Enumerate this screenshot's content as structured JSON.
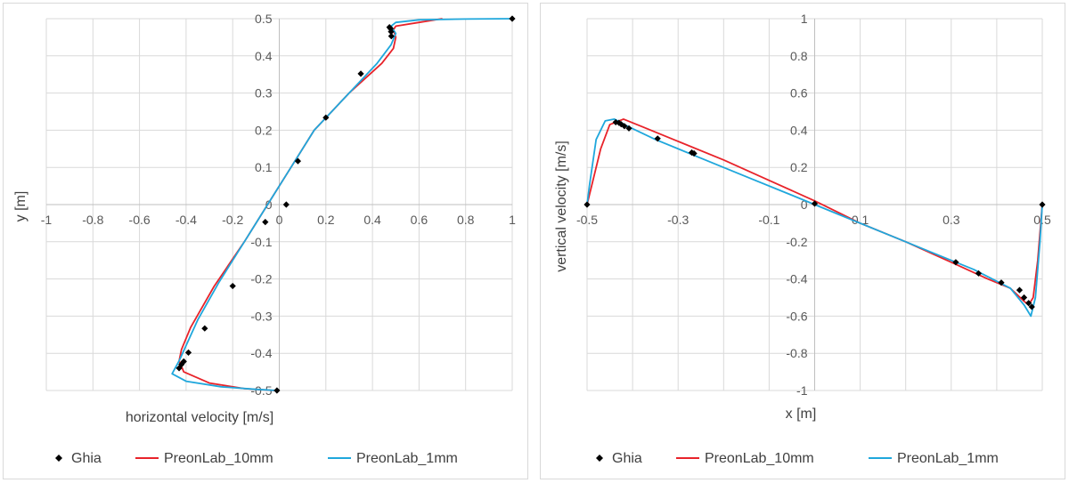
{
  "colors": {
    "ghia": "#000000",
    "preon10": "#e8232a",
    "preon1": "#1fa7dc",
    "grid": "#d9d9d9"
  },
  "chart_data": [
    {
      "type": "scatter",
      "xlabel": "horizontal velocity [m/s]",
      "ylabel": "y [m]",
      "xlim": [
        -1,
        1
      ],
      "ylim": [
        -0.5,
        0.5
      ],
      "x_ticks": [
        "-1",
        "-0.8",
        "-0.6",
        "-0.4",
        "-0.2",
        "0",
        "0.2",
        "0.4",
        "0.6",
        "0.8",
        "1"
      ],
      "y_ticks": [
        "-0.5",
        "-0.4",
        "-0.3",
        "-0.2",
        "-0.1",
        "0",
        "0.1",
        "0.2",
        "0.3",
        "0.4",
        "0.5"
      ],
      "grid": true,
      "legend_position": "bottom",
      "series": [
        {
          "name": "Ghia",
          "kind": "markers",
          "x": [
            1.0,
            0.473,
            0.478,
            0.48,
            0.481,
            0.35,
            0.2,
            0.08,
            0.03,
            -0.06,
            -0.2,
            -0.32,
            -0.39,
            -0.41,
            -0.42,
            -0.43,
            -0.01
          ],
          "y": [
            0.5,
            0.477,
            0.473,
            0.465,
            0.453,
            0.352,
            0.234,
            0.117,
            0.0,
            -0.047,
            -0.219,
            -0.333,
            -0.398,
            -0.422,
            -0.43,
            -0.44,
            -0.5
          ]
        },
        {
          "name": "PreonLab_10mm",
          "kind": "line",
          "x": [
            0.7,
            0.6,
            0.5,
            0.49,
            0.5,
            0.49,
            0.44,
            0.3,
            0.15,
            0.05,
            -0.05,
            -0.15,
            -0.28,
            -0.38,
            -0.42,
            -0.43,
            -0.41,
            -0.3,
            -0.15,
            -0.02
          ],
          "y": [
            0.5,
            0.49,
            0.48,
            0.47,
            0.45,
            0.42,
            0.38,
            0.3,
            0.2,
            0.1,
            0.0,
            -0.1,
            -0.22,
            -0.33,
            -0.39,
            -0.42,
            -0.45,
            -0.48,
            -0.495,
            -0.5
          ]
        },
        {
          "name": "PreonLab_1mm",
          "kind": "line",
          "x": [
            1.0,
            0.8,
            0.6,
            0.5,
            0.48,
            0.5,
            0.48,
            0.42,
            0.3,
            0.15,
            0.05,
            -0.05,
            -0.15,
            -0.26,
            -0.35,
            -0.43,
            -0.46,
            -0.4,
            -0.25,
            -0.1,
            -0.01
          ],
          "y": [
            0.5,
            0.499,
            0.497,
            0.49,
            0.48,
            0.46,
            0.43,
            0.38,
            0.3,
            0.2,
            0.1,
            0.0,
            -0.1,
            -0.21,
            -0.31,
            -0.42,
            -0.455,
            -0.475,
            -0.49,
            -0.497,
            -0.5
          ]
        }
      ]
    },
    {
      "type": "scatter",
      "xlabel": "x [m]",
      "ylabel": "vertical velocity [m/s]",
      "xlim": [
        -0.5,
        0.5
      ],
      "ylim": [
        -1,
        1
      ],
      "x_ticks": [
        "-0.5",
        "-0.3",
        "-0.1",
        "0.1",
        "0.3",
        "0.5"
      ],
      "x_tick_values": [
        -0.5,
        -0.3,
        -0.1,
        0.1,
        0.3,
        0.5
      ],
      "x_grid_values": [
        -0.5,
        -0.4,
        -0.3,
        -0.2,
        -0.1,
        0,
        0.1,
        0.2,
        0.3,
        0.4,
        0.5
      ],
      "y_ticks": [
        "-1",
        "-0.8",
        "-0.6",
        "-0.4",
        "-0.2",
        "0",
        "0.2",
        "0.4",
        "0.6",
        "0.8",
        "1"
      ],
      "grid": true,
      "legend_position": "bottom",
      "series": [
        {
          "name": "Ghia",
          "kind": "markers",
          "x": [
            -0.5,
            -0.437,
            -0.43,
            -0.425,
            -0.418,
            -0.408,
            -0.345,
            -0.27,
            -0.265,
            0.0,
            0.31,
            0.36,
            0.41,
            0.45,
            0.46,
            0.47,
            0.477,
            0.5
          ],
          "y": [
            0.0,
            0.443,
            0.44,
            0.432,
            0.422,
            0.41,
            0.355,
            0.28,
            0.275,
            0.005,
            -0.31,
            -0.37,
            -0.42,
            -0.46,
            -0.5,
            -0.53,
            -0.55,
            0.0
          ]
        },
        {
          "name": "PreonLab_10mm",
          "kind": "line",
          "x": [
            -0.5,
            -0.49,
            -0.47,
            -0.45,
            -0.42,
            -0.38,
            -0.3,
            -0.2,
            -0.1,
            0.0,
            0.1,
            0.2,
            0.3,
            0.38,
            0.43,
            0.46,
            0.47,
            0.48,
            0.49,
            0.5
          ],
          "y": [
            0.0,
            0.1,
            0.3,
            0.43,
            0.46,
            0.42,
            0.34,
            0.24,
            0.13,
            0.02,
            -0.1,
            -0.2,
            -0.31,
            -0.4,
            -0.45,
            -0.52,
            -0.54,
            -0.5,
            -0.3,
            0.0
          ],
          "color": "#e8232a"
        },
        {
          "name": "PreonLab_1mm",
          "kind": "line",
          "x": [
            -0.5,
            -0.495,
            -0.48,
            -0.46,
            -0.44,
            -0.41,
            -0.35,
            -0.25,
            -0.15,
            -0.05,
            0.05,
            0.15,
            0.25,
            0.35,
            0.43,
            0.46,
            0.475,
            0.485,
            0.495,
            0.5
          ],
          "y": [
            0.0,
            0.1,
            0.35,
            0.45,
            0.46,
            0.42,
            0.35,
            0.25,
            0.15,
            0.05,
            -0.05,
            -0.15,
            -0.25,
            -0.35,
            -0.45,
            -0.54,
            -0.6,
            -0.5,
            -0.2,
            0.0
          ]
        }
      ]
    }
  ]
}
